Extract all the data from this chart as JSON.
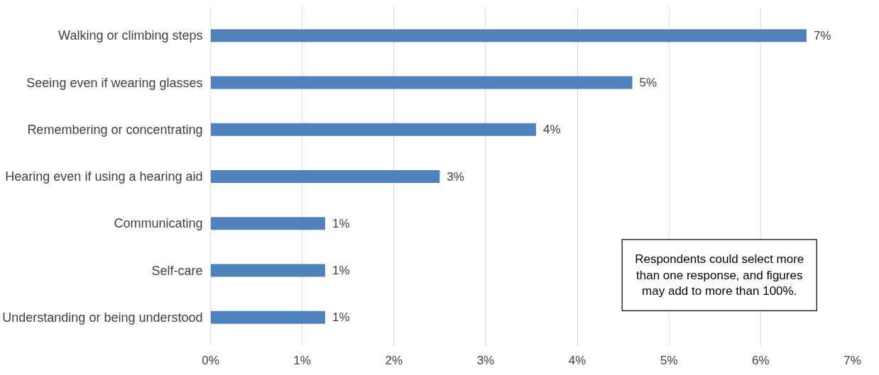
{
  "chart_data": {
    "type": "bar",
    "orientation": "horizontal",
    "categories": [
      "Walking or climbing steps",
      "Seeing even if wearing glasses",
      "Remembering or concentrating",
      "Hearing even if using a hearing aid",
      "Communicating",
      "Self-care",
      "Understanding or being understood"
    ],
    "values": [
      6.5,
      4.6,
      3.55,
      2.5,
      1.25,
      1.25,
      1.25
    ],
    "value_labels": [
      "7%",
      "5%",
      "4%",
      "3%",
      "1%",
      "1%",
      "1%"
    ],
    "color": "#4f81bd",
    "xlim": [
      0,
      7
    ],
    "xticks": [
      {
        "value": 0,
        "label": "0%"
      },
      {
        "value": 1,
        "label": "1%"
      },
      {
        "value": 2,
        "label": "2%"
      },
      {
        "value": 3,
        "label": "3%"
      },
      {
        "value": 4,
        "label": "4%"
      },
      {
        "value": 5,
        "label": "5%"
      },
      {
        "value": 6,
        "label": "6%"
      },
      {
        "value": 7,
        "label": "7%"
      }
    ],
    "grid": "x",
    "annotations": [
      "Respondents could select more than one response, and figures may add to more than 100%."
    ]
  }
}
